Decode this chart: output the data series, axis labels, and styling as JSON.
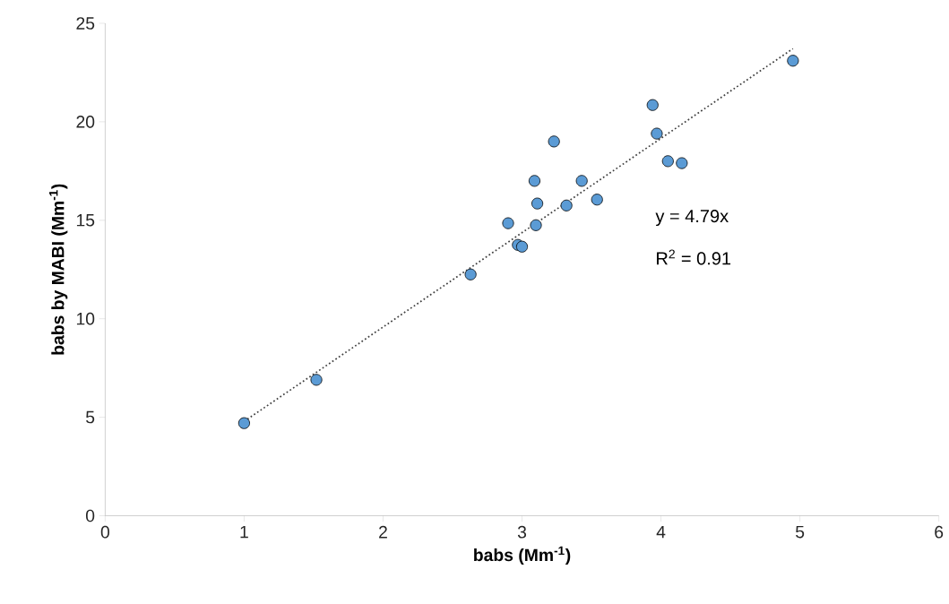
{
  "chart_data": {
    "type": "scatter",
    "xlabel": "babs (Mm$^{-1}$)",
    "ylabel": "babs by MABI (Mm$^{-1}$)",
    "annotations": [
      "y = 4.79x",
      "R$^{2}$ = 0.91"
    ],
    "xlim": [
      0,
      6
    ],
    "ylim": [
      0,
      25
    ],
    "xticks": [
      0,
      1,
      2,
      3,
      4,
      5,
      6
    ],
    "yticks": [
      0,
      5,
      10,
      15,
      20,
      25
    ],
    "series": [
      {
        "color": "#5b9bd5",
        "marker": "circle",
        "x": [
          1.0,
          1.52,
          2.63,
          2.9,
          2.97,
          3.0,
          3.09,
          3.11,
          3.1,
          3.23,
          3.32,
          3.43,
          3.54,
          3.94,
          3.97,
          4.05,
          4.15,
          4.95
        ],
        "values": [
          4.7,
          6.9,
          12.25,
          14.85,
          13.75,
          13.66,
          17.0,
          15.85,
          14.75,
          19.0,
          15.75,
          17.0,
          16.05,
          20.85,
          19.4,
          18.0,
          17.9,
          23.1
        ]
      },
      {
        "type": "line",
        "color": "#404040",
        "marker": "none",
        "line_style": "dotted",
        "x": [
          1.0,
          4.95
        ],
        "values": [
          4.79,
          23.71
        ]
      }
    ]
  }
}
